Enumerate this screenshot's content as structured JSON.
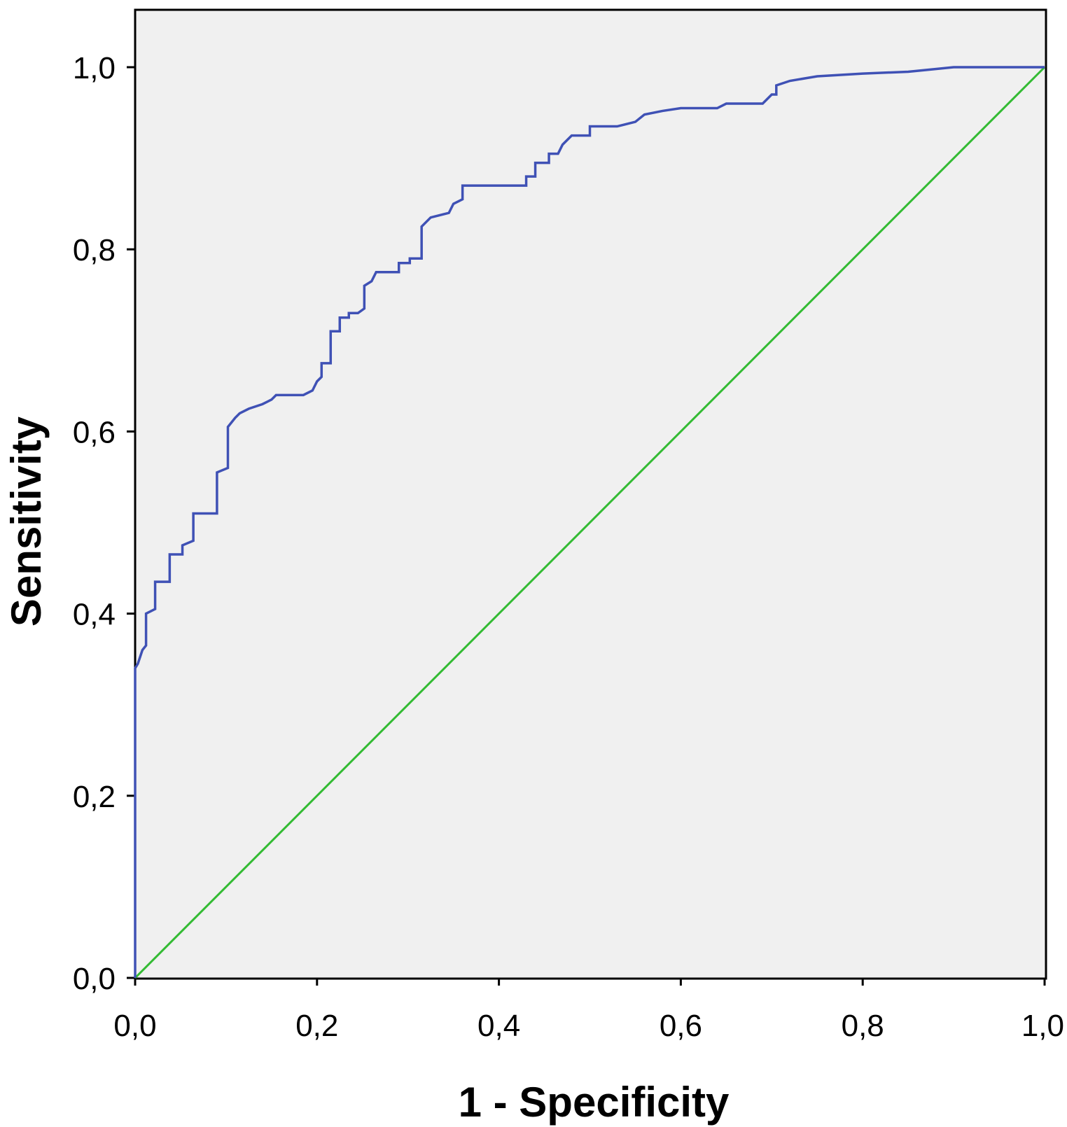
{
  "chart_data": {
    "type": "line",
    "title": "",
    "xlabel": "1 - Specificity",
    "ylabel": "Sensitivity",
    "xlim": [
      0,
      1
    ],
    "ylim": [
      0,
      1.05
    ],
    "x_ticks": [
      {
        "value": 0.0,
        "label": "0,0"
      },
      {
        "value": 0.2,
        "label": "0,2"
      },
      {
        "value": 0.4,
        "label": "0,4"
      },
      {
        "value": 0.6,
        "label": "0,6"
      },
      {
        "value": 0.8,
        "label": "0,8"
      },
      {
        "value": 1.0,
        "label": "1,0"
      }
    ],
    "y_ticks": [
      {
        "value": 0.0,
        "label": "0,0"
      },
      {
        "value": 0.2,
        "label": "0,2"
      },
      {
        "value": 0.4,
        "label": "0,4"
      },
      {
        "value": 0.6,
        "label": "0,6"
      },
      {
        "value": 0.8,
        "label": "0,8"
      },
      {
        "value": 1.0,
        "label": "1,0"
      }
    ],
    "grid": false,
    "background_color": "#f0f0f0",
    "series": [
      {
        "color": "#3f51b5",
        "step": true,
        "points": [
          [
            0.0,
            0.0
          ],
          [
            0.0,
            0.34
          ],
          [
            0.003,
            0.345
          ],
          [
            0.008,
            0.36
          ],
          [
            0.012,
            0.365
          ],
          [
            0.012,
            0.4
          ],
          [
            0.022,
            0.405
          ],
          [
            0.022,
            0.435
          ],
          [
            0.038,
            0.435
          ],
          [
            0.038,
            0.465
          ],
          [
            0.052,
            0.465
          ],
          [
            0.052,
            0.475
          ],
          [
            0.064,
            0.48
          ],
          [
            0.064,
            0.51
          ],
          [
            0.09,
            0.51
          ],
          [
            0.09,
            0.555
          ],
          [
            0.102,
            0.56
          ],
          [
            0.102,
            0.605
          ],
          [
            0.11,
            0.615
          ],
          [
            0.115,
            0.62
          ],
          [
            0.125,
            0.625
          ],
          [
            0.14,
            0.63
          ],
          [
            0.15,
            0.635
          ],
          [
            0.155,
            0.64
          ],
          [
            0.185,
            0.64
          ],
          [
            0.195,
            0.645
          ],
          [
            0.2,
            0.655
          ],
          [
            0.205,
            0.66
          ],
          [
            0.205,
            0.675
          ],
          [
            0.215,
            0.675
          ],
          [
            0.215,
            0.71
          ],
          [
            0.225,
            0.71
          ],
          [
            0.225,
            0.725
          ],
          [
            0.235,
            0.725
          ],
          [
            0.235,
            0.73
          ],
          [
            0.245,
            0.73
          ],
          [
            0.252,
            0.735
          ],
          [
            0.252,
            0.76
          ],
          [
            0.26,
            0.765
          ],
          [
            0.265,
            0.775
          ],
          [
            0.29,
            0.775
          ],
          [
            0.29,
            0.785
          ],
          [
            0.302,
            0.785
          ],
          [
            0.302,
            0.79
          ],
          [
            0.315,
            0.79
          ],
          [
            0.315,
            0.825
          ],
          [
            0.325,
            0.835
          ],
          [
            0.345,
            0.84
          ],
          [
            0.35,
            0.85
          ],
          [
            0.36,
            0.855
          ],
          [
            0.36,
            0.87
          ],
          [
            0.43,
            0.87
          ],
          [
            0.43,
            0.88
          ],
          [
            0.44,
            0.88
          ],
          [
            0.44,
            0.895
          ],
          [
            0.455,
            0.895
          ],
          [
            0.455,
            0.905
          ],
          [
            0.465,
            0.905
          ],
          [
            0.47,
            0.915
          ],
          [
            0.48,
            0.925
          ],
          [
            0.5,
            0.925
          ],
          [
            0.5,
            0.935
          ],
          [
            0.53,
            0.935
          ],
          [
            0.55,
            0.94
          ],
          [
            0.56,
            0.948
          ],
          [
            0.58,
            0.952
          ],
          [
            0.6,
            0.955
          ],
          [
            0.64,
            0.955
          ],
          [
            0.65,
            0.96
          ],
          [
            0.69,
            0.96
          ],
          [
            0.7,
            0.97
          ],
          [
            0.705,
            0.97
          ],
          [
            0.705,
            0.98
          ],
          [
            0.72,
            0.985
          ],
          [
            0.75,
            0.99
          ],
          [
            0.8,
            0.993
          ],
          [
            0.85,
            0.995
          ],
          [
            0.88,
            0.998
          ],
          [
            0.9,
            1.0
          ],
          [
            1.0,
            1.0
          ]
        ]
      },
      {
        "color": "#33bb33",
        "points": [
          [
            0.0,
            0.0
          ],
          [
            1.0,
            1.0
          ]
        ]
      }
    ]
  }
}
